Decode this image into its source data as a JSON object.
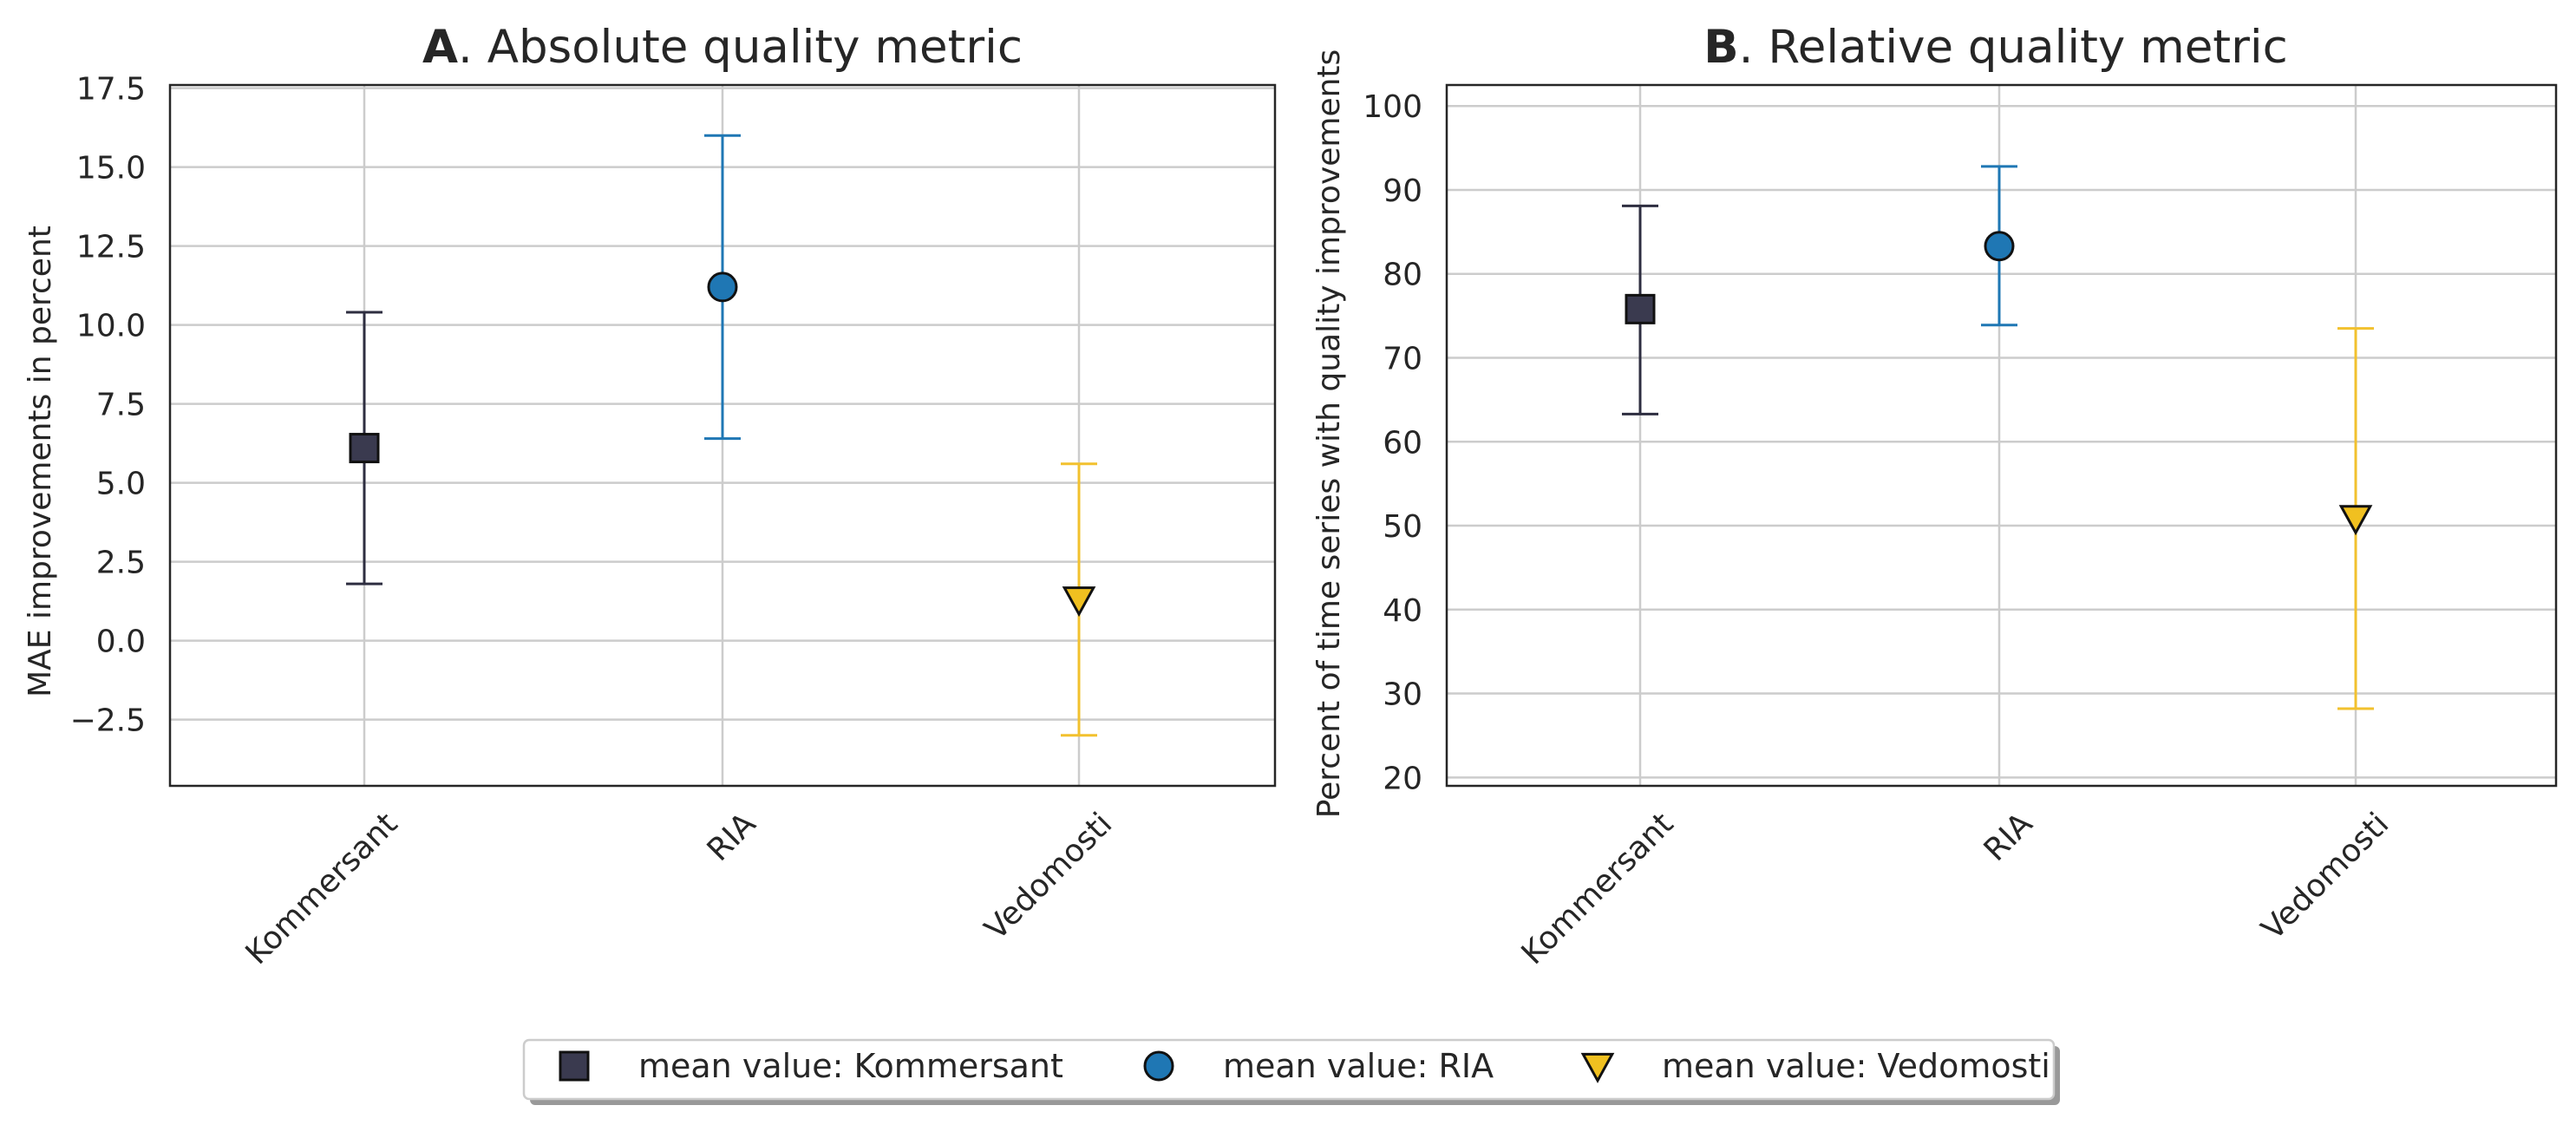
{
  "chart_data": [
    {
      "type": "scatter",
      "title_letter": "A",
      "title_rest": ". Absolute quality metric",
      "xlabel": "",
      "ylabel": "MAE improvements in percent",
      "ylim": [
        -4.6,
        17.6
      ],
      "yticks": [
        -2.5,
        0.0,
        2.5,
        5.0,
        7.5,
        10.0,
        12.5,
        15.0,
        17.5
      ],
      "ytick_labels": [
        "−2.5",
        "0.0",
        "2.5",
        "5.0",
        "7.5",
        "10.0",
        "12.5",
        "15.0",
        "17.5"
      ],
      "categories": [
        "Kommersant",
        "RIA",
        "Vedomosti"
      ],
      "grid": true,
      "series": [
        {
          "category": "Kommersant",
          "mean": 6.1,
          "low": 1.8,
          "high": 10.4
        },
        {
          "category": "RIA",
          "mean": 11.2,
          "low": 6.4,
          "high": 16.0
        },
        {
          "category": "Vedomosti",
          "mean": 1.3,
          "low": -3.0,
          "high": 5.6
        }
      ]
    },
    {
      "type": "scatter",
      "title_letter": "B",
      "title_rest": ". Relative quality metric",
      "xlabel": "",
      "ylabel": "Percent of time series with quality improvements",
      "ylim": [
        19,
        102.5
      ],
      "yticks": [
        20,
        30,
        40,
        50,
        60,
        70,
        80,
        90,
        100
      ],
      "ytick_labels": [
        "20",
        "30",
        "40",
        "50",
        "60",
        "70",
        "80",
        "90",
        "100"
      ],
      "categories": [
        "Kommersant",
        "RIA",
        "Vedomosti"
      ],
      "grid": true,
      "series": [
        {
          "category": "Kommersant",
          "mean": 75.8,
          "low": 63.3,
          "high": 88.1
        },
        {
          "category": "RIA",
          "mean": 83.3,
          "low": 73.9,
          "high": 92.8
        },
        {
          "category": "Vedomosti",
          "mean": 50.9,
          "low": 28.2,
          "high": 73.5
        }
      ]
    }
  ],
  "legend": {
    "placement": "bottom-center",
    "entries": [
      {
        "label": "mean value: Kommersant",
        "marker": "square",
        "color": "#3a3a4f"
      },
      {
        "label": "mean value: RIA",
        "marker": "circle",
        "color": "#1f77b4"
      },
      {
        "label": "mean value: Vedomosti",
        "marker": "triangle-down",
        "color": "#f0c020"
      }
    ]
  },
  "colors": {
    "Kommersant": "#2e2e40",
    "RIA": "#1f77b4",
    "Vedomosti": "#f2c12e"
  }
}
